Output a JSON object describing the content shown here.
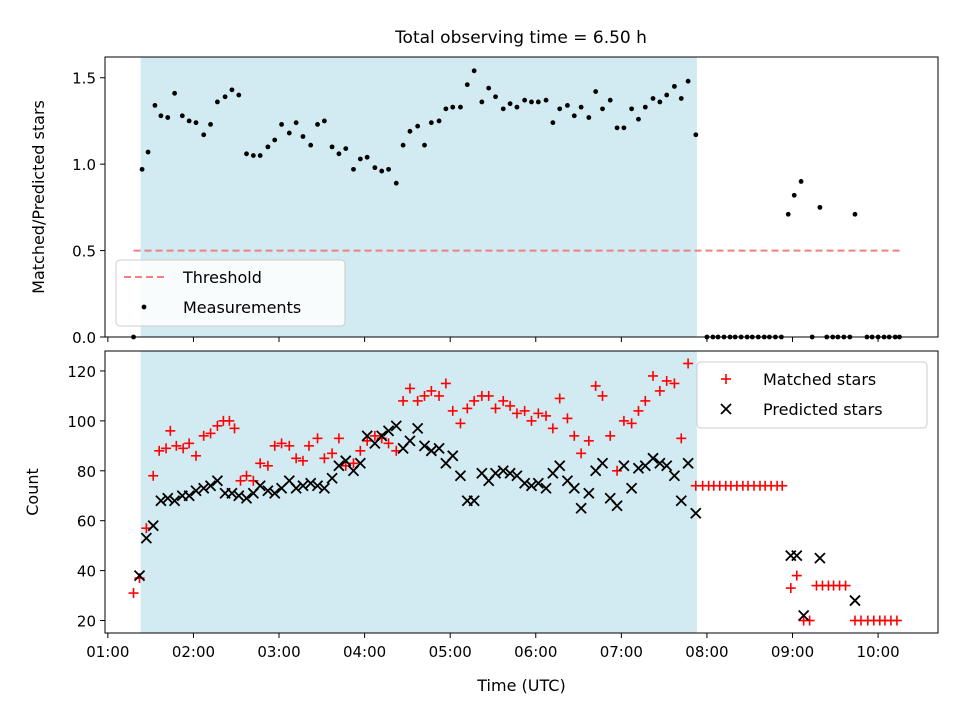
{
  "title": "Total observing time = 6.50 h",
  "colors": {
    "shade": "#add8e6",
    "threshold": "#f08080",
    "measurement": "#000000",
    "matched": "#ff0000",
    "predicted": "#000000"
  },
  "chart_data": [
    {
      "type": "scatter",
      "name": "ratio-panel",
      "ylabel": "Matched/Predicted stars",
      "xlim": [
        0.9667,
        10.7
      ],
      "ylim": [
        0,
        1.62
      ],
      "yticks": [
        0.0,
        0.5,
        1.0,
        1.5
      ],
      "yticklabels": [
        "0.0",
        "0.5",
        "1.0",
        "1.5"
      ],
      "xticks": [
        1,
        2,
        3,
        4,
        5,
        6,
        7,
        8,
        9,
        10
      ],
      "shaded_span": [
        1.383,
        7.883
      ],
      "threshold": {
        "label": "Threshold",
        "y": 0.5,
        "x": [
          1.3,
          10.25
        ]
      },
      "legend": {
        "placement": "lower-left",
        "entries": [
          "Threshold",
          "Measurements"
        ]
      },
      "series": [
        {
          "name": "Measurements",
          "marker": "dot",
          "x": [
            1.3,
            1.4,
            1.47,
            1.55,
            1.62,
            1.7,
            1.78,
            1.87,
            1.95,
            2.03,
            2.12,
            2.2,
            2.28,
            2.37,
            2.45,
            2.53,
            2.62,
            2.7,
            2.78,
            2.87,
            2.95,
            3.03,
            3.12,
            3.2,
            3.28,
            3.37,
            3.45,
            3.53,
            3.62,
            3.7,
            3.78,
            3.87,
            3.95,
            4.03,
            4.12,
            4.2,
            4.28,
            4.37,
            4.45,
            4.53,
            4.62,
            4.7,
            4.78,
            4.87,
            4.95,
            5.03,
            5.12,
            5.2,
            5.28,
            5.37,
            5.45,
            5.53,
            5.62,
            5.7,
            5.78,
            5.87,
            5.95,
            6.03,
            6.12,
            6.2,
            6.28,
            6.37,
            6.45,
            6.53,
            6.62,
            6.7,
            6.78,
            6.87,
            6.95,
            7.03,
            7.12,
            7.2,
            7.28,
            7.37,
            7.45,
            7.53,
            7.62,
            7.7,
            7.78,
            7.87,
            8.0,
            8.07,
            8.13,
            8.2,
            8.27,
            8.33,
            8.4,
            8.47,
            8.53,
            8.6,
            8.67,
            8.73,
            8.8,
            8.87,
            8.95,
            9.02,
            9.1,
            9.23,
            9.32,
            9.4,
            9.47,
            9.53,
            9.6,
            9.67,
            9.73,
            9.87,
            9.93,
            10.0,
            10.07,
            10.13,
            10.2,
            10.25
          ],
          "y": [
            0.0,
            0.97,
            1.07,
            1.34,
            1.28,
            1.27,
            1.41,
            1.28,
            1.25,
            1.24,
            1.17,
            1.23,
            1.36,
            1.39,
            1.43,
            1.4,
            1.06,
            1.05,
            1.05,
            1.1,
            1.14,
            1.23,
            1.18,
            1.24,
            1.16,
            1.11,
            1.23,
            1.25,
            1.1,
            1.06,
            1.09,
            0.97,
            1.03,
            1.04,
            0.98,
            0.96,
            0.97,
            0.89,
            1.11,
            1.19,
            1.22,
            1.11,
            1.24,
            1.25,
            1.32,
            1.33,
            1.33,
            1.46,
            1.54,
            1.36,
            1.44,
            1.39,
            1.32,
            1.35,
            1.33,
            1.37,
            1.36,
            1.36,
            1.37,
            1.24,
            1.32,
            1.34,
            1.28,
            1.33,
            1.27,
            1.42,
            1.32,
            1.37,
            1.21,
            1.21,
            1.32,
            1.26,
            1.33,
            1.38,
            1.36,
            1.4,
            1.45,
            1.38,
            1.48,
            1.17,
            0.0,
            0.0,
            0.0,
            0.0,
            0.0,
            0.0,
            0.0,
            0.0,
            0.0,
            0.0,
            0.0,
            0.0,
            0.0,
            0.0,
            0.71,
            0.82,
            0.9,
            0.0,
            0.75,
            0.0,
            0.0,
            0.0,
            0.0,
            0.0,
            0.71,
            0.0,
            0.0,
            0.0,
            0.0,
            0.0,
            0.0,
            0.0
          ]
        }
      ]
    },
    {
      "type": "scatter",
      "name": "count-panel",
      "xlabel": "Time (UTC)",
      "ylabel": "Count",
      "xlim": [
        0.9667,
        10.7
      ],
      "ylim": [
        15,
        128
      ],
      "yticks": [
        20,
        40,
        60,
        80,
        100,
        120
      ],
      "yticklabels": [
        "20",
        "40",
        "60",
        "80",
        "100",
        "120"
      ],
      "xticks": [
        1,
        2,
        3,
        4,
        5,
        6,
        7,
        8,
        9,
        10
      ],
      "xticklabels": [
        "01:00",
        "02:00",
        "03:00",
        "04:00",
        "05:00",
        "06:00",
        "07:00",
        "08:00",
        "09:00",
        "10:00"
      ],
      "shaded_span": [
        1.383,
        7.883
      ],
      "legend": {
        "placement": "upper-right",
        "entries": [
          "Matched stars",
          "Predicted stars"
        ]
      },
      "series": [
        {
          "name": "Matched stars",
          "marker": "plus",
          "x": [
            1.3,
            1.37,
            1.45,
            1.53,
            1.6,
            1.68,
            1.73,
            1.8,
            1.88,
            1.95,
            2.03,
            2.12,
            2.2,
            2.28,
            2.35,
            2.42,
            2.48,
            2.55,
            2.62,
            2.7,
            2.78,
            2.87,
            2.95,
            3.03,
            3.12,
            3.2,
            3.28,
            3.35,
            3.45,
            3.53,
            3.62,
            3.7,
            3.78,
            3.87,
            3.95,
            4.03,
            4.12,
            4.2,
            4.28,
            4.37,
            4.45,
            4.53,
            4.62,
            4.7,
            4.78,
            4.87,
            4.95,
            5.03,
            5.12,
            5.2,
            5.28,
            5.37,
            5.45,
            5.53,
            5.62,
            5.7,
            5.78,
            5.87,
            5.95,
            6.03,
            6.12,
            6.2,
            6.28,
            6.37,
            6.45,
            6.53,
            6.62,
            6.7,
            6.78,
            6.87,
            6.95,
            7.03,
            7.12,
            7.2,
            7.28,
            7.37,
            7.45,
            7.53,
            7.62,
            7.7,
            7.78,
            7.87,
            7.95,
            8.02,
            8.08,
            8.15,
            8.22,
            8.28,
            8.35,
            8.42,
            8.48,
            8.55,
            8.62,
            8.68,
            8.75,
            8.82,
            8.88,
            8.98,
            9.05,
            9.13,
            9.2,
            9.28,
            9.35,
            9.42,
            9.48,
            9.55,
            9.62,
            9.73,
            9.8,
            9.88,
            9.95,
            10.02,
            10.08,
            10.15,
            10.22
          ],
          "y": [
            31,
            37,
            57,
            78,
            88,
            89,
            96,
            90,
            89,
            91,
            86,
            94,
            95,
            98,
            100,
            100,
            97,
            76,
            78,
            76,
            83,
            82,
            90,
            91,
            90,
            85,
            84,
            90,
            93,
            85,
            87,
            93,
            82,
            83,
            88,
            92,
            94,
            93,
            91,
            88,
            108,
            113,
            108,
            110,
            112,
            110,
            115,
            104,
            99,
            105,
            108,
            110,
            110,
            105,
            108,
            106,
            103,
            104,
            100,
            103,
            102,
            97,
            109,
            101,
            94,
            87,
            92,
            114,
            110,
            94,
            80,
            100,
            99,
            104,
            108,
            118,
            112,
            116,
            115,
            93,
            123,
            74,
            74,
            74,
            74,
            74,
            74,
            74,
            74,
            74,
            74,
            74,
            74,
            74,
            74,
            74,
            74,
            33,
            38,
            20,
            20,
            34,
            34,
            34,
            34,
            34,
            34,
            20,
            20,
            20,
            20,
            20,
            20,
            20,
            20
          ],
          "note": ""
        },
        {
          "name": "Predicted stars",
          "marker": "x",
          "x": [
            1.37,
            1.45,
            1.53,
            1.62,
            1.7,
            1.78,
            1.87,
            1.95,
            2.03,
            2.12,
            2.2,
            2.28,
            2.37,
            2.45,
            2.53,
            2.62,
            2.7,
            2.78,
            2.87,
            2.95,
            3.03,
            3.12,
            3.2,
            3.28,
            3.37,
            3.45,
            3.53,
            3.62,
            3.7,
            3.78,
            3.87,
            3.95,
            4.03,
            4.12,
            4.2,
            4.28,
            4.37,
            4.45,
            4.53,
            4.62,
            4.7,
            4.78,
            4.87,
            4.95,
            5.03,
            5.12,
            5.2,
            5.28,
            5.37,
            5.45,
            5.53,
            5.62,
            5.7,
            5.78,
            5.87,
            5.95,
            6.03,
            6.12,
            6.2,
            6.28,
            6.37,
            6.45,
            6.53,
            6.62,
            6.7,
            6.78,
            6.87,
            6.95,
            7.03,
            7.12,
            7.2,
            7.28,
            7.37,
            7.45,
            7.53,
            7.62,
            7.7,
            7.78,
            7.87,
            8.98,
            9.05,
            9.13,
            9.32,
            9.73
          ],
          "y": [
            38,
            53,
            58,
            68,
            69,
            68,
            70,
            70,
            72,
            73,
            74,
            76,
            71,
            71,
            70,
            69,
            71,
            74,
            72,
            71,
            73,
            76,
            73,
            74,
            75,
            74,
            73,
            77,
            82,
            84,
            80,
            83,
            94,
            91,
            94,
            96,
            98,
            89,
            92,
            97,
            90,
            88,
            89,
            83,
            86,
            78,
            68,
            68,
            79,
            76,
            79,
            80,
            79,
            78,
            75,
            74,
            75,
            73,
            79,
            82,
            76,
            73,
            65,
            71,
            80,
            83,
            69,
            66,
            82,
            73,
            81,
            82,
            85,
            83,
            82,
            78,
            68,
            83,
            63,
            46,
            46,
            22,
            45,
            28
          ]
        }
      ]
    }
  ]
}
